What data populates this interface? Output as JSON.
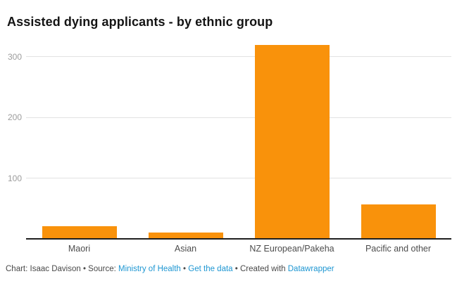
{
  "header": {
    "title": "Assisted dying applicants - by ethnic group"
  },
  "chart_data": {
    "type": "bar",
    "title": "Assisted dying applicants - by ethnic group",
    "categories": [
      "Maori",
      "Asian",
      "NZ European/Pakeha",
      "Pacific and other"
    ],
    "values": [
      21,
      10,
      318,
      57
    ],
    "xlabel": "",
    "ylabel": "",
    "ylim": [
      0,
      330
    ],
    "yticks": [
      100,
      200,
      300
    ],
    "grid": true,
    "legend": "none",
    "bar_color": "#f9920b"
  },
  "colors": {
    "bar": "#f9920b",
    "link": "#1d96d2",
    "title_text": "#141414",
    "footer_text": "#494949",
    "tick_label": "#9c9c9c",
    "category_label": "#4c4c4c",
    "gridline": "#e2e2e2",
    "baseline": "#1f1f1f"
  },
  "footer": {
    "credit": "Chart: Isaac Davison",
    "bullet_1": " • ",
    "source_label": "Source: ",
    "source_name": "Ministry of Health",
    "bullet_2": " • ",
    "get_data": "Get the data",
    "bullet_3": " • ",
    "created_with": "Created with ",
    "tool": "Datawrapper"
  }
}
